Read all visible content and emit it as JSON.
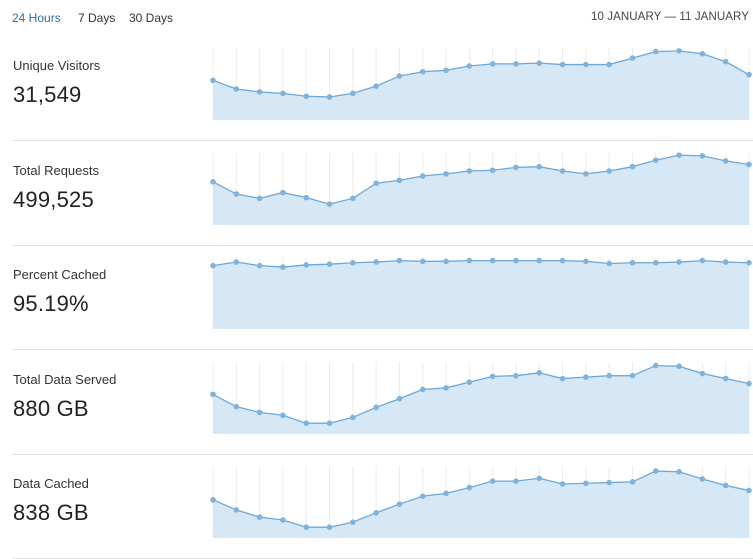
{
  "range_tabs": [
    {
      "label": "24 Hours",
      "active": true
    },
    {
      "label": "7 Days",
      "active": false
    },
    {
      "label": "30 Days",
      "active": false
    }
  ],
  "date_range": "10 JANUARY — 11 JANUARY",
  "colors": {
    "line": "#6fa8d4",
    "fill": "#d6e7f5",
    "point": "#7fb3dc",
    "grid": "#ececec",
    "active_tab": "#2c6fa6"
  },
  "chart_data": [
    {
      "type": "area",
      "label": "Unique Visitors",
      "value": "31,549",
      "ylim": [
        0,
        100
      ],
      "values": [
        55,
        43,
        39,
        37,
        33,
        32,
        37,
        47,
        61,
        67,
        69,
        75,
        78,
        78,
        79,
        77,
        77,
        77,
        86,
        95,
        96,
        92,
        81,
        63
      ]
    },
    {
      "type": "area",
      "label": "Total Requests",
      "value": "499,525",
      "ylim": [
        0,
        100
      ],
      "values": [
        60,
        43,
        37,
        45,
        38,
        29,
        37,
        58,
        62,
        68,
        71,
        75,
        76,
        80,
        81,
        75,
        71,
        75,
        81,
        90,
        97,
        96,
        89,
        84
      ]
    },
    {
      "type": "area",
      "label": "Percent Cached",
      "value": "95.19%",
      "ylim": [
        0,
        100
      ],
      "values": [
        88,
        93,
        88,
        86,
        89,
        90,
        92,
        93,
        95,
        94,
        94,
        95,
        95,
        95,
        95,
        95,
        94,
        91,
        92,
        92,
        93,
        95,
        93,
        92
      ]
    },
    {
      "type": "area",
      "label": "Total Data Served",
      "value": "880 GB",
      "ylim": [
        0,
        100
      ],
      "values": [
        55,
        38,
        30,
        26,
        15,
        15,
        23,
        37,
        49,
        62,
        64,
        72,
        80,
        81,
        85,
        77,
        79,
        81,
        81,
        95,
        94,
        84,
        77,
        70
      ]
    },
    {
      "type": "area",
      "label": "Data Cached",
      "value": "838 GB",
      "ylim": [
        0,
        100
      ],
      "values": [
        53,
        39,
        29,
        25,
        15,
        15,
        22,
        35,
        47,
        58,
        62,
        70,
        79,
        79,
        83,
        75,
        76,
        77,
        78,
        93,
        92,
        82,
        73,
        66
      ]
    }
  ]
}
